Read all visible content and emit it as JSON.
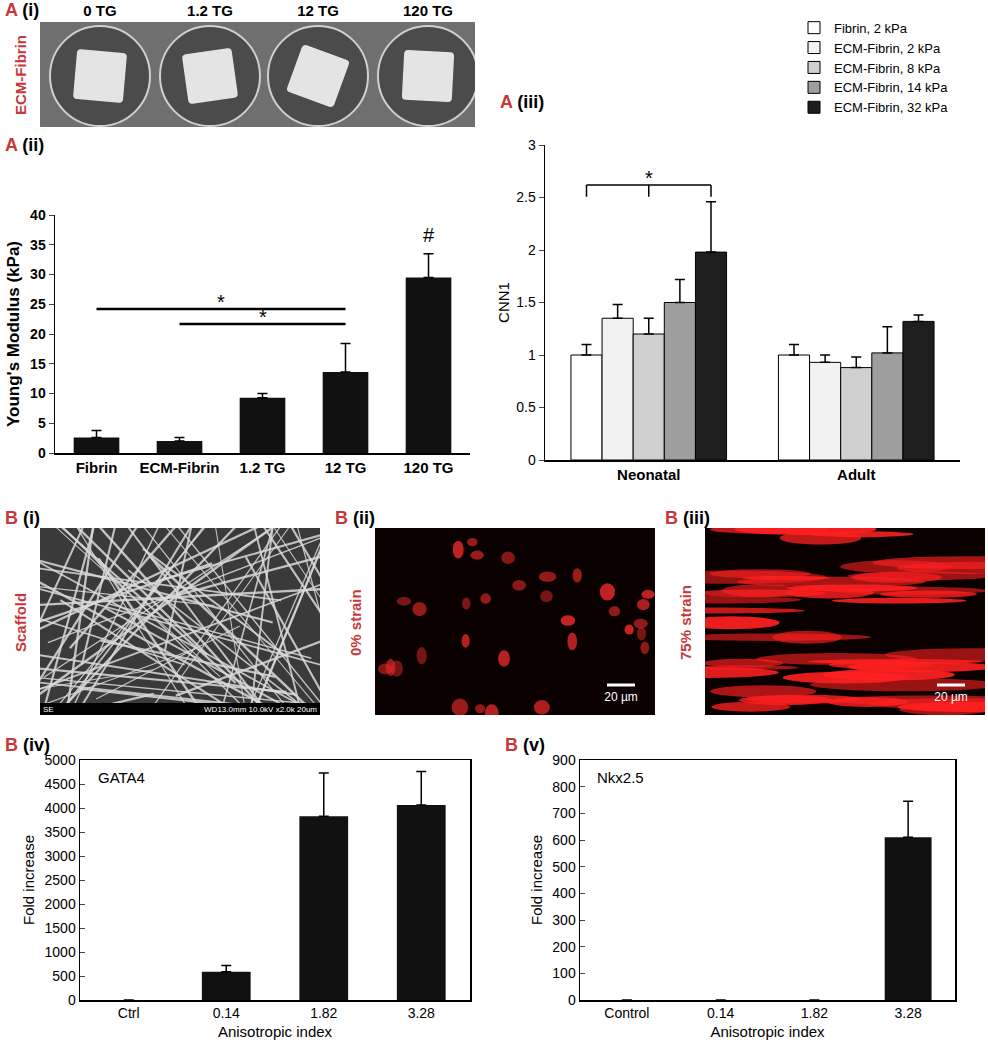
{
  "chart_data": [
    {
      "type": "bar",
      "title": "A (ii)",
      "categories": [
        "Fibrin",
        "ECM-Fibrin",
        "1.2 TG",
        "12 TG",
        "120 TG"
      ],
      "values": [
        2.6,
        2.0,
        9.3,
        13.6,
        29.5
      ],
      "errors": [
        1.2,
        0.6,
        0.7,
        4.8,
        4.0
      ],
      "color": "#111111",
      "y_label": "Young's Modulus (kPa)",
      "ylim": [
        0,
        40
      ],
      "yticks": [
        0,
        5,
        10,
        15,
        20,
        25,
        30,
        35,
        40
      ],
      "grid": false,
      "annotations": [
        {
          "text": "*",
          "from": "Fibrin",
          "to": "12 TG",
          "y": 24.2
        },
        {
          "text": "*",
          "from": "ECM-Fibrin",
          "to": "12 TG",
          "y": 21.7
        },
        {
          "text": "#",
          "at": "120 TG",
          "y": 34.5
        }
      ]
    },
    {
      "type": "bar",
      "title": "A (iii)",
      "categories": [
        "Neonatal",
        "Adult"
      ],
      "series": [
        {
          "name": "Fibrin, 2 kPa",
          "color": "#ffffff",
          "values": [
            1.0,
            1.0
          ],
          "errors": [
            0.1,
            0.1
          ]
        },
        {
          "name": "ECM-Fibrin, 2 kPa",
          "color": "#f2f2f2",
          "values": [
            1.35,
            0.93
          ],
          "errors": [
            0.13,
            0.07
          ]
        },
        {
          "name": "ECM-Fibrin, 8 kPa",
          "color": "#d0d0d0",
          "values": [
            1.2,
            0.88
          ],
          "errors": [
            0.15,
            0.1
          ]
        },
        {
          "name": "ECM-Fibrin, 14 kPa",
          "color": "#9e9e9e",
          "values": [
            1.5,
            1.02
          ],
          "errors": [
            0.22,
            0.25
          ]
        },
        {
          "name": "ECM-Fibrin, 32 kPa",
          "color": "#1e1e1e",
          "values": [
            1.98,
            1.32
          ],
          "errors": [
            0.48,
            0.06
          ]
        }
      ],
      "y_label": "CNN1",
      "ylim": [
        0,
        3
      ],
      "yticks": [
        0,
        0.5,
        1,
        1.5,
        2,
        2.5,
        3
      ],
      "legend": "top right",
      "grid": false,
      "annotations": [
        {
          "text": "*",
          "category": "Neonatal",
          "from": "Fibrin, 2 kPa",
          "mid": "ECM-Fibrin, 8 kPa",
          "to": "ECM-Fibrin, 32 kPa",
          "y": 2.62
        }
      ]
    },
    {
      "type": "bar",
      "title": "B (iv)",
      "categories": [
        "Ctrl",
        "0.14",
        "1.82",
        "3.28"
      ],
      "values": [
        0,
        590,
        3830,
        4060
      ],
      "errors": [
        0,
        130,
        900,
        700
      ],
      "color": "#111111",
      "x_label": "Anisotropic index",
      "y_label": "Fold increase",
      "ylim": [
        0,
        5000
      ],
      "yticks": [
        0,
        500,
        1000,
        1500,
        2000,
        2500,
        3000,
        3500,
        4000,
        4500,
        5000
      ],
      "grid": false,
      "annotations": [
        {
          "text": "GATA4"
        }
      ]
    },
    {
      "type": "bar",
      "title": "B (v)",
      "categories": [
        "Control",
        "0.14",
        "1.82",
        "3.28"
      ],
      "values": [
        0,
        0,
        0,
        610
      ],
      "errors": [
        0,
        0,
        0,
        135
      ],
      "color": "#111111",
      "x_label": "Anisotropic index",
      "y_label": "Fold increase",
      "ylim": [
        0,
        900
      ],
      "yticks": [
        0,
        100,
        200,
        300,
        400,
        500,
        600,
        700,
        800,
        900
      ],
      "grid": false,
      "annotations": [
        {
          "text": "Nkx2.5"
        }
      ]
    }
  ],
  "images": [
    {
      "title": "A (i)",
      "side_label": "ECM-Fibrin",
      "labels": [
        "0 TG",
        "1.2 TG",
        "12 TG",
        "120 TG"
      ]
    },
    {
      "title": "B (i)",
      "side_label": "Scaffold",
      "footer": [
        "SE",
        "WD13.0mm 10.0kV x2.0k 20um"
      ]
    },
    {
      "title": "B (ii)",
      "side_label": "0% strain",
      "scale_bar": "20 µm"
    },
    {
      "title": "B (iii)",
      "side_label": "75% strain",
      "scale_bar": "20 µm"
    }
  ]
}
